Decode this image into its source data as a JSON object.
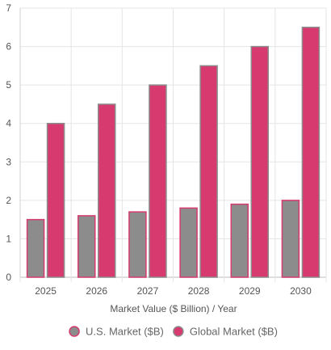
{
  "chart_data": {
    "type": "bar",
    "categories": [
      "2025",
      "2026",
      "2027",
      "2028",
      "2029",
      "2030"
    ],
    "series": [
      {
        "name": "U.S. Market ($B)",
        "values": [
          1.5,
          1.6,
          1.7,
          1.8,
          1.9,
          2.0
        ],
        "color": "#8c8c8c",
        "border": "#d63a6f"
      },
      {
        "name": "Global Market ($B)",
        "values": [
          4.0,
          4.5,
          5.0,
          5.5,
          6.0,
          6.5
        ],
        "color": "#d63a6f",
        "border": "#8c8c8c"
      }
    ],
    "xlabel": "Market Value ($ Billion) / Year",
    "ylabel": "",
    "ylim": [
      0,
      7
    ],
    "yticks": [
      0,
      1,
      2,
      3,
      4,
      5,
      6,
      7
    ],
    "grid": true,
    "legend_position": "bottom"
  }
}
